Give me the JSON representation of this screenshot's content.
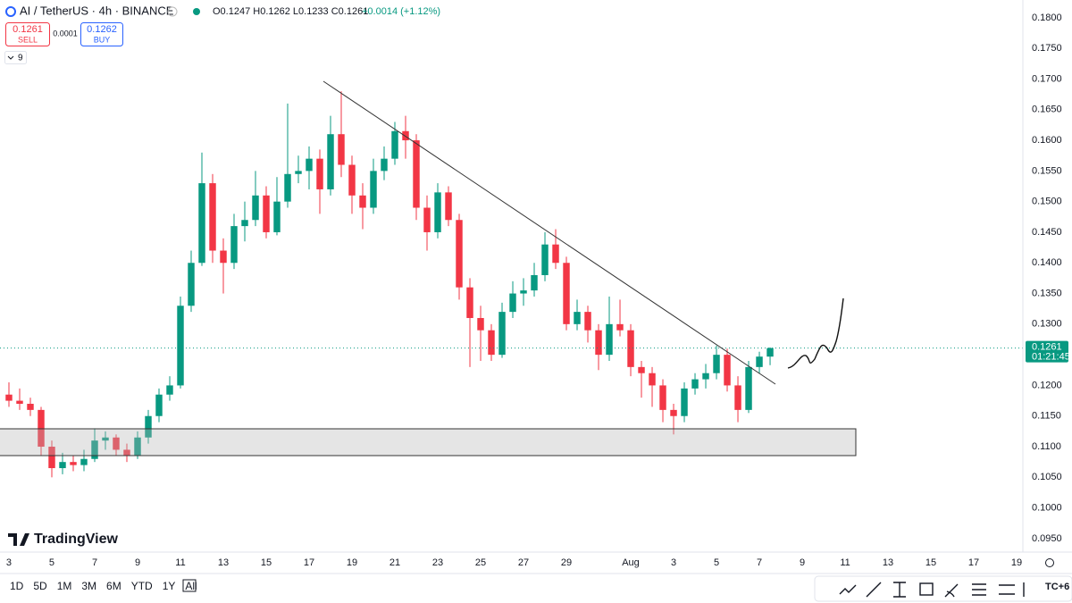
{
  "chart_data": {
    "type": "candlestick",
    "title": "AI / TetherUS · 4h · BINANCE",
    "ohlc_text": "O0.1247 H0.1262 L0.1233 C0.1261",
    "change_text": "+0.0014 (+1.12%)",
    "sell_price": "0.1261",
    "sell_label": "SELL",
    "spread": "0.0001",
    "buy_price": "0.1262",
    "buy_label": "BUY",
    "indicator_count": "9",
    "countdown": "01:21:45",
    "brand": "TradingView",
    "up_color": "#089981",
    "down_color": "#f23645",
    "grid": false,
    "open": [
      0.1185,
      0.1175,
      0.117,
      0.116,
      0.11,
      0.1065,
      0.1075,
      0.107,
      0.108,
      0.111,
      0.1115,
      0.1095,
      0.1085,
      0.1115,
      0.115,
      0.1185,
      0.12,
      0.133,
      0.14,
      0.153,
      0.142,
      0.14,
      0.146,
      0.147,
      0.151,
      0.145,
      0.15,
      0.1545,
      0.155,
      0.157,
      0.152,
      0.161,
      0.156,
      0.151,
      0.149,
      0.155,
      0.157,
      0.1615,
      0.16,
      0.149,
      0.145,
      0.1515,
      0.147,
      0.136,
      0.131,
      0.129,
      0.125,
      0.132,
      0.135,
      0.1355,
      0.138,
      0.143,
      0.14,
      0.13,
      0.132,
      0.129,
      0.125,
      0.13,
      0.129,
      0.123,
      0.122,
      0.12,
      0.116,
      0.115,
      0.1195,
      0.121,
      0.122,
      0.125,
      0.12,
      0.116,
      0.123,
      0.1247
    ],
    "high": [
      0.1205,
      0.1195,
      0.118,
      0.1165,
      0.111,
      0.109,
      0.1085,
      0.1095,
      0.113,
      0.1125,
      0.112,
      0.1105,
      0.1125,
      0.116,
      0.1195,
      0.1215,
      0.1345,
      0.142,
      0.158,
      0.1545,
      0.144,
      0.148,
      0.15,
      0.155,
      0.1525,
      0.154,
      0.166,
      0.1575,
      0.159,
      0.1585,
      0.164,
      0.168,
      0.1575,
      0.153,
      0.157,
      0.159,
      0.163,
      0.164,
      0.161,
      0.151,
      0.153,
      0.1525,
      0.148,
      0.1375,
      0.133,
      0.13,
      0.1335,
      0.137,
      0.1375,
      0.14,
      0.145,
      0.1455,
      0.141,
      0.134,
      0.133,
      0.13,
      0.1345,
      0.134,
      0.13,
      0.124,
      0.123,
      0.121,
      0.117,
      0.1205,
      0.122,
      0.1235,
      0.1265,
      0.126,
      0.1215,
      0.124,
      0.1255,
      0.1262
    ],
    "low": [
      0.1165,
      0.116,
      0.115,
      0.1085,
      0.105,
      0.1055,
      0.106,
      0.106,
      0.1075,
      0.1095,
      0.1085,
      0.1075,
      0.108,
      0.1105,
      0.114,
      0.1175,
      0.1195,
      0.132,
      0.1395,
      0.14,
      0.135,
      0.139,
      0.1435,
      0.146,
      0.144,
      0.1445,
      0.149,
      0.153,
      0.152,
      0.148,
      0.151,
      0.154,
      0.148,
      0.1455,
      0.148,
      0.1535,
      0.156,
      0.157,
      0.147,
      0.142,
      0.144,
      0.146,
      0.134,
      0.123,
      0.124,
      0.124,
      0.1245,
      0.131,
      0.133,
      0.1345,
      0.137,
      0.139,
      0.129,
      0.129,
      0.127,
      0.1225,
      0.124,
      0.128,
      0.1215,
      0.118,
      0.1165,
      0.114,
      0.112,
      0.114,
      0.1185,
      0.1195,
      0.121,
      0.119,
      0.114,
      0.1155,
      0.122,
      0.1233
    ],
    "close": [
      0.1175,
      0.117,
      0.116,
      0.11,
      0.1065,
      0.1075,
      0.107,
      0.108,
      0.111,
      0.1115,
      0.1095,
      0.1085,
      0.1115,
      0.115,
      0.1185,
      0.12,
      0.133,
      0.14,
      0.153,
      0.142,
      0.14,
      0.146,
      0.147,
      0.151,
      0.145,
      0.15,
      0.1545,
      0.155,
      0.157,
      0.152,
      0.161,
      0.156,
      0.151,
      0.149,
      0.155,
      0.157,
      0.1615,
      0.16,
      0.149,
      0.145,
      0.1515,
      0.147,
      0.136,
      0.131,
      0.129,
      0.125,
      0.132,
      0.135,
      0.1355,
      0.138,
      0.143,
      0.14,
      0.13,
      0.132,
      0.129,
      0.125,
      0.13,
      0.129,
      0.123,
      0.122,
      0.12,
      0.116,
      0.115,
      0.1195,
      0.121,
      0.122,
      0.125,
      0.12,
      0.116,
      0.123,
      0.1247,
      0.1261
    ],
    "xlim": [
      -0.833,
      94.58
    ],
    "xticks": [
      {
        "value": 0,
        "label": "3"
      },
      {
        "value": 4,
        "label": "5"
      },
      {
        "value": 8,
        "label": "7"
      },
      {
        "value": 12,
        "label": "9"
      },
      {
        "value": 16,
        "label": "11"
      },
      {
        "value": 20,
        "label": "13"
      },
      {
        "value": 24,
        "label": "15"
      },
      {
        "value": 28,
        "label": "17"
      },
      {
        "value": 32,
        "label": "19"
      },
      {
        "value": 36,
        "label": "21"
      },
      {
        "value": 40,
        "label": "23"
      },
      {
        "value": 44,
        "label": "25"
      },
      {
        "value": 48,
        "label": "27"
      },
      {
        "value": 52,
        "label": "29"
      },
      {
        "value": 58,
        "label": "Aug"
      },
      {
        "value": 62,
        "label": "3"
      },
      {
        "value": 66,
        "label": "5"
      },
      {
        "value": 70,
        "label": "7"
      },
      {
        "value": 74,
        "label": "9"
      },
      {
        "value": 78,
        "label": "11"
      },
      {
        "value": 82,
        "label": "13"
      },
      {
        "value": 86,
        "label": "15"
      },
      {
        "value": 90,
        "label": "17"
      },
      {
        "value": 94,
        "label": "19"
      }
    ],
    "ylim": [
      0.0928,
      0.1829
    ],
    "yticks": [
      {
        "value": 0.18,
        "label": "0.1800"
      },
      {
        "value": 0.175,
        "label": "0.1750"
      },
      {
        "value": 0.17,
        "label": "0.1700"
      },
      {
        "value": 0.165,
        "label": "0.1650"
      },
      {
        "value": 0.16,
        "label": "0.1600"
      },
      {
        "value": 0.155,
        "label": "0.1550"
      },
      {
        "value": 0.15,
        "label": "0.1500"
      },
      {
        "value": 0.145,
        "label": "0.1450"
      },
      {
        "value": 0.14,
        "label": "0.1400"
      },
      {
        "value": 0.135,
        "label": "0.1350"
      },
      {
        "value": 0.13,
        "label": "0.1300"
      },
      {
        "value": 0.125,
        "label": "0.1250"
      },
      {
        "value": 0.12,
        "label": "0.1200"
      },
      {
        "value": 0.115,
        "label": "0.1150"
      },
      {
        "value": 0.11,
        "label": "0.1100"
      },
      {
        "value": 0.105,
        "label": "0.1050"
      },
      {
        "value": 0.1,
        "label": "0.1000"
      },
      {
        "value": 0.095,
        "label": "0.0950"
      }
    ]
  },
  "toolbar": {
    "ranges": [
      "1D",
      "5D",
      "1M",
      "3M",
      "6M",
      "YTD",
      "1Y",
      "All"
    ],
    "timezone": "TC+6"
  }
}
